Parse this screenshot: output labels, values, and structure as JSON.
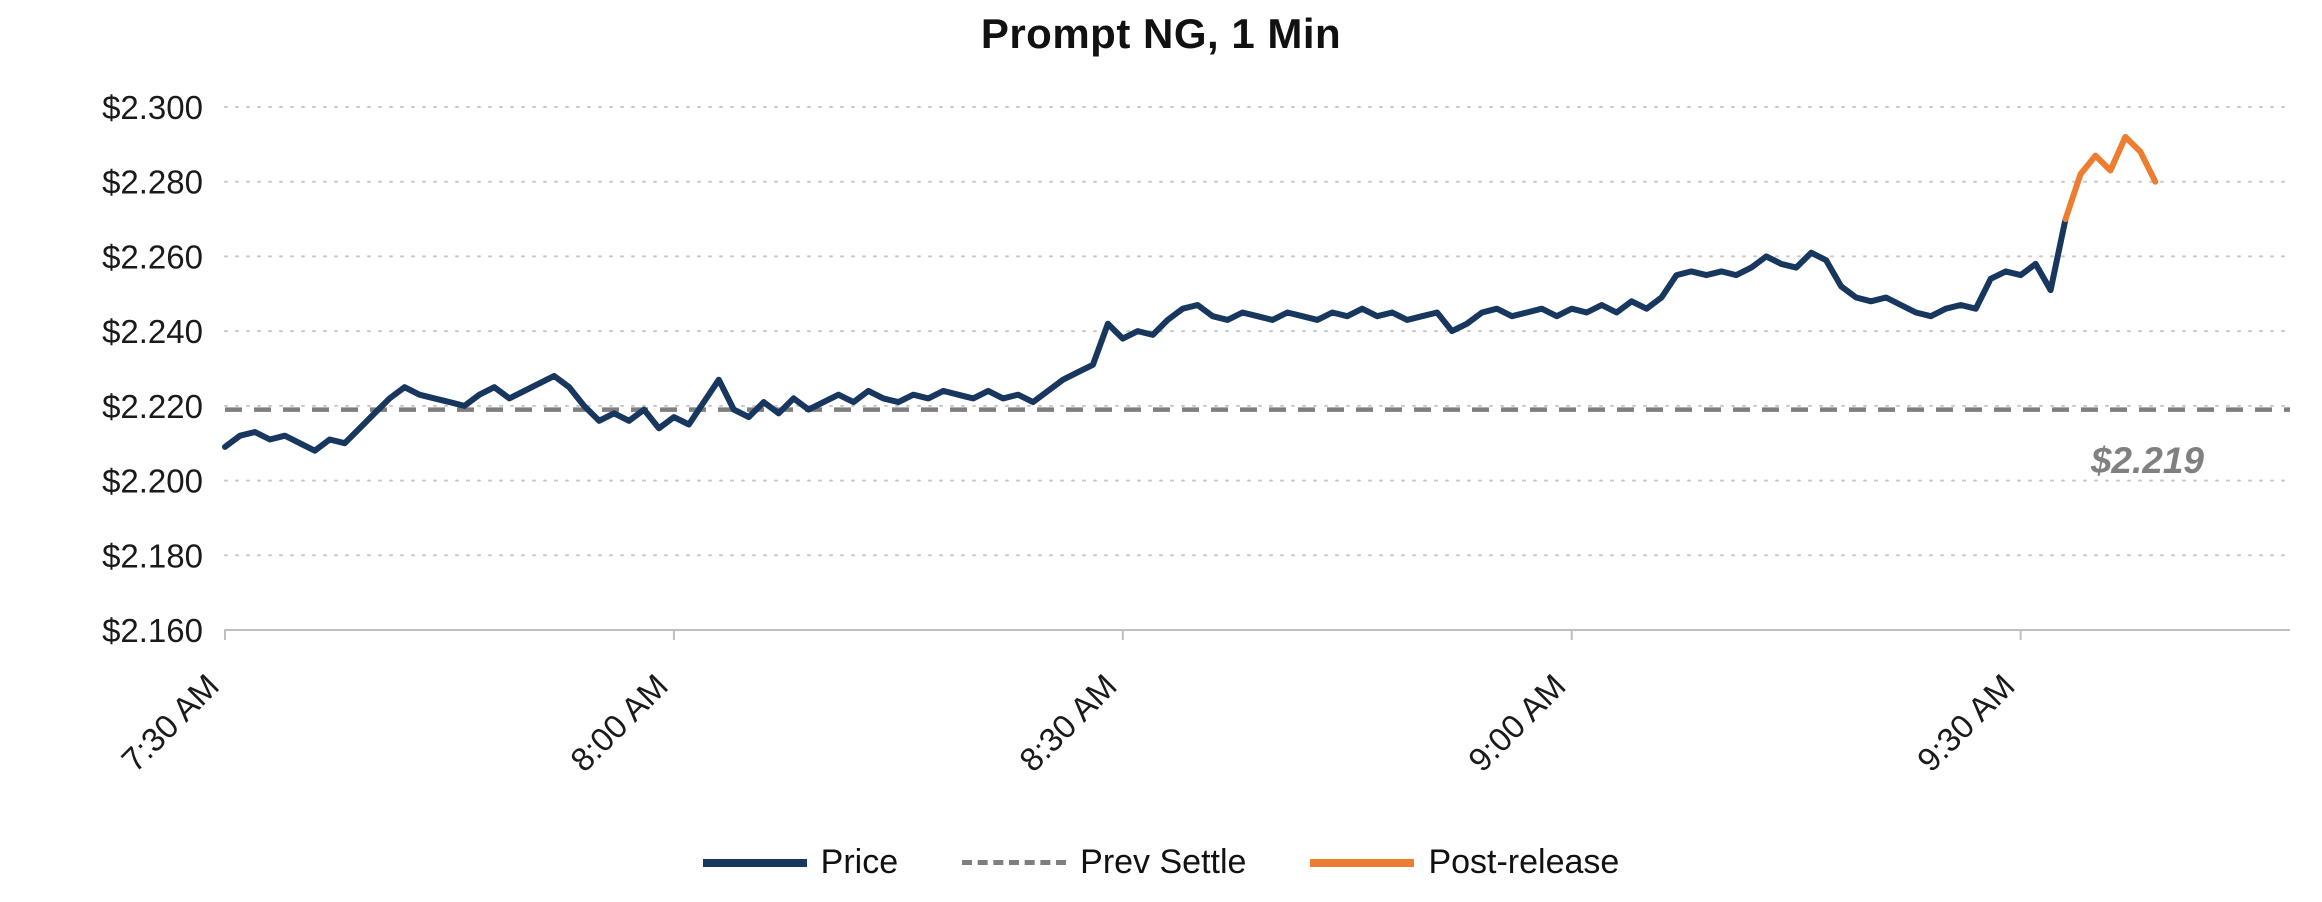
{
  "title": "Prompt NG, 1 Min",
  "legend": {
    "items": [
      {
        "label": "Price",
        "color": "#17375E",
        "style": "solid"
      },
      {
        "label": "Prev Settle",
        "color": "#7F7F7F",
        "style": "dashed"
      },
      {
        "label": "Post-release",
        "color": "#ED7D31",
        "style": "solid"
      }
    ]
  },
  "colors": {
    "price_line": "#17375E",
    "post_release_line": "#ED7D31",
    "prev_settle_line": "#7F7F7F",
    "gridline": "#C8C8C8",
    "axis_line": "#BFBFBF",
    "background": "#FFFFFF"
  },
  "chart_data": {
    "type": "line",
    "title": "Prompt NG, 1 Min",
    "interval": "1 min",
    "grid": "horizontal-dotted",
    "legend_position": "bottom-center",
    "x_axis": {
      "domain_minutes": [
        0,
        138
      ],
      "start_time": "7:30 AM",
      "ticks": [
        {
          "minute": 0,
          "label": "7:30 AM"
        },
        {
          "minute": 30,
          "label": "8:00 AM"
        },
        {
          "minute": 60,
          "label": "8:30 AM"
        },
        {
          "minute": 90,
          "label": "9:00 AM"
        },
        {
          "minute": 120,
          "label": "9:30 AM"
        }
      ]
    },
    "y_axis": {
      "min": 2.16,
      "max": 2.3,
      "tick_step": 0.02,
      "ticks": [
        {
          "value": 2.3,
          "label": "$2.300"
        },
        {
          "value": 2.28,
          "label": "$2.280"
        },
        {
          "value": 2.26,
          "label": "$2.260"
        },
        {
          "value": 2.24,
          "label": "$2.240"
        },
        {
          "value": 2.22,
          "label": "$2.220"
        },
        {
          "value": 2.2,
          "label": "$2.200"
        },
        {
          "value": 2.18,
          "label": "$2.180"
        },
        {
          "value": 2.16,
          "label": "$2.160"
        }
      ]
    },
    "prev_settle": {
      "value": 2.219,
      "label": "$2.219"
    },
    "series": [
      {
        "name": "Price",
        "color": "#17375E",
        "start_minute": 0,
        "values": [
          2.209,
          2.212,
          2.213,
          2.211,
          2.212,
          2.21,
          2.208,
          2.211,
          2.21,
          2.214,
          2.218,
          2.222,
          2.225,
          2.223,
          2.222,
          2.221,
          2.22,
          2.223,
          2.225,
          2.222,
          2.224,
          2.226,
          2.228,
          2.225,
          2.22,
          2.216,
          2.218,
          2.216,
          2.219,
          2.214,
          2.217,
          2.215,
          2.221,
          2.227,
          2.219,
          2.217,
          2.221,
          2.218,
          2.222,
          2.219,
          2.221,
          2.223,
          2.221,
          2.224,
          2.222,
          2.221,
          2.223,
          2.222,
          2.224,
          2.223,
          2.222,
          2.224,
          2.222,
          2.223,
          2.221,
          2.224,
          2.227,
          2.229,
          2.231,
          2.242,
          2.238,
          2.24,
          2.239,
          2.243,
          2.246,
          2.247,
          2.244,
          2.243,
          2.245,
          2.244,
          2.243,
          2.245,
          2.244,
          2.243,
          2.245,
          2.244,
          2.246,
          2.244,
          2.245,
          2.243,
          2.244,
          2.245,
          2.24,
          2.242,
          2.245,
          2.246,
          2.244,
          2.245,
          2.246,
          2.244,
          2.246,
          2.245,
          2.247,
          2.245,
          2.248,
          2.246,
          2.249,
          2.255,
          2.256,
          2.255,
          2.256,
          2.255,
          2.257,
          2.26,
          2.258,
          2.257,
          2.261,
          2.259,
          2.252,
          2.249,
          2.248,
          2.249,
          2.247,
          2.245,
          2.244,
          2.246,
          2.247,
          2.246,
          2.254,
          2.256,
          2.255,
          2.258,
          2.251,
          2.27
        ]
      },
      {
        "name": "Post-release",
        "color": "#ED7D31",
        "start_minute": 123,
        "values": [
          2.27,
          2.282,
          2.287,
          2.283,
          2.292,
          2.288,
          2.28
        ]
      }
    ]
  }
}
